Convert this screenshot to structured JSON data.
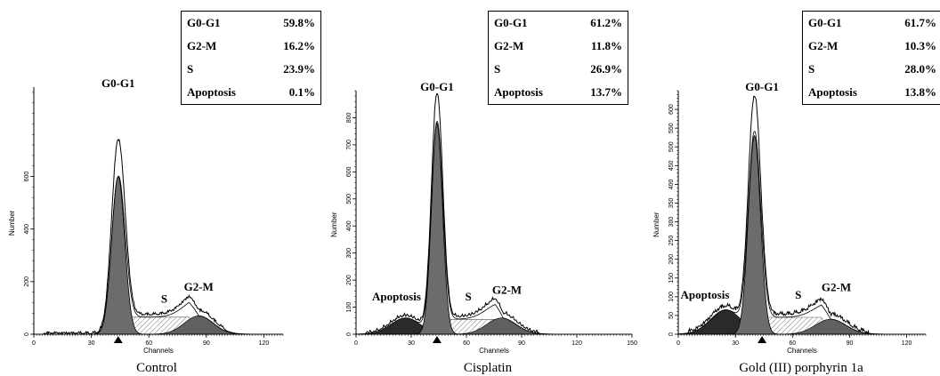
{
  "chart_data": [
    {
      "type": "area",
      "caption": "Control",
      "xlabel": "Channels",
      "ylabel": "Number",
      "xlim": [
        0,
        130
      ],
      "ylim": [
        0,
        940
      ],
      "xticks": [
        0,
        30,
        60,
        90,
        120
      ],
      "yticks": [
        0,
        200,
        400,
        600
      ],
      "marker_x": 44,
      "peak_labels": [
        {
          "text": "G0-G1",
          "x": 44,
          "y": 940
        },
        {
          "text": "S",
          "x": 68,
          "y": 120
        },
        {
          "text": "G2-M",
          "x": 86,
          "y": 165
        }
      ],
      "stats": [
        {
          "label": "G0-G1",
          "value": "59.8%"
        },
        {
          "label": "G2-M",
          "value": "16.2%"
        },
        {
          "label": "S",
          "value": "23.9%"
        },
        {
          "label": "Apoptosis",
          "value": "0.1%"
        }
      ],
      "components": {
        "g1": {
          "mu": 44,
          "sigma": 3.4,
          "amp": 600
        },
        "g2": {
          "mu": 86,
          "sigma": 7.5,
          "amp": 70
        },
        "s": {
          "from": 44,
          "to": 86,
          "level": 65
        },
        "apop": {
          "mu": 25,
          "sigma": 9,
          "amp": 0
        }
      },
      "raw_peak": 735
    },
    {
      "type": "area",
      "caption": "Cisplatin",
      "xlabel": "Channels",
      "ylabel": "Number",
      "xlim": [
        0,
        150
      ],
      "ylim": [
        0,
        900
      ],
      "xticks": [
        0,
        30,
        60,
        90,
        120,
        150
      ],
      "yticks": [
        0,
        100,
        200,
        300,
        400,
        500,
        600,
        700,
        800
      ],
      "marker_x": 44,
      "peak_labels": [
        {
          "text": "G0-G1",
          "x": 44,
          "y": 900
        },
        {
          "text": "Apoptosis",
          "x": 22,
          "y": 125
        },
        {
          "text": "S",
          "x": 61,
          "y": 125
        },
        {
          "text": "G2-M",
          "x": 82,
          "y": 150
        }
      ],
      "stats": [
        {
          "label": "G0-G1",
          "value": "61.2%"
        },
        {
          "label": "G2-M",
          "value": "11.8%"
        },
        {
          "label": "S",
          "value": "26.9%"
        },
        {
          "label": "Apoptosis",
          "value": "13.7%"
        }
      ],
      "components": {
        "g1": {
          "mu": 44,
          "sigma": 3.0,
          "amp": 780
        },
        "g2": {
          "mu": 79,
          "sigma": 8,
          "amp": 60
        },
        "s": {
          "from": 44,
          "to": 80,
          "level": 55
        },
        "apop": {
          "mu": 27,
          "sigma": 8,
          "amp": 60
        }
      },
      "raw_peak": 880
    },
    {
      "type": "area",
      "caption": "Gold (III) porphyrin 1a",
      "xlabel": "Channels",
      "ylabel": "Number",
      "xlim": [
        0,
        130
      ],
      "ylim": [
        0,
        650
      ],
      "xticks": [
        0,
        30,
        60,
        90,
        120
      ],
      "yticks": [
        0,
        50,
        100,
        150,
        200,
        250,
        300,
        350,
        400,
        450,
        500,
        550,
        600
      ],
      "marker_x": 44,
      "peak_labels": [
        {
          "text": "G0-G1",
          "x": 44,
          "y": 650
        },
        {
          "text": "Apoptosis",
          "x": 14,
          "y": 95
        },
        {
          "text": "S",
          "x": 63,
          "y": 95
        },
        {
          "text": "G2-M",
          "x": 83,
          "y": 115
        }
      ],
      "stats": [
        {
          "label": "G0-G1",
          "value": "61.7%"
        },
        {
          "label": "G2-M",
          "value": "10.3%"
        },
        {
          "label": "S",
          "value": "28.0%"
        },
        {
          "label": "Apoptosis",
          "value": "13.8%"
        }
      ],
      "components": {
        "g1": {
          "mu": 40,
          "sigma": 3.2,
          "amp": 530
        },
        "g2": {
          "mu": 80,
          "sigma": 8,
          "amp": 40
        },
        "s": {
          "from": 40,
          "to": 80,
          "level": 45
        },
        "apop": {
          "mu": 25,
          "sigma": 8,
          "amp": 65
        }
      },
      "raw_peak": 620
    }
  ]
}
